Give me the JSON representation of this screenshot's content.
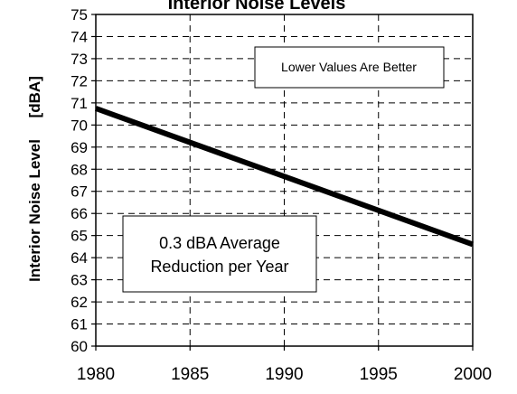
{
  "chart_data": {
    "type": "line",
    "title": "Interior Noise Levels",
    "ylabel": "Interior Noise Level     [dBA]",
    "xlabel": "",
    "x": [
      1980,
      2000
    ],
    "xlim": [
      1980,
      2000
    ],
    "ylim": [
      60,
      75
    ],
    "xticks": [
      "1980",
      "1985",
      "1990",
      "1995",
      "2000"
    ],
    "yticks": [
      "60",
      "61",
      "62",
      "63",
      "64",
      "65",
      "66",
      "67",
      "68",
      "69",
      "70",
      "71",
      "72",
      "73",
      "74",
      "75"
    ],
    "series": [
      {
        "values": [
          70.75,
          64.6
        ]
      }
    ],
    "grid": true,
    "line_color": "#000000",
    "annotations": {
      "top_right": "Lower Values Are Better",
      "bottom_left_line1": "0.3 dBA Average",
      "bottom_left_line2": "Reduction per Year"
    }
  }
}
